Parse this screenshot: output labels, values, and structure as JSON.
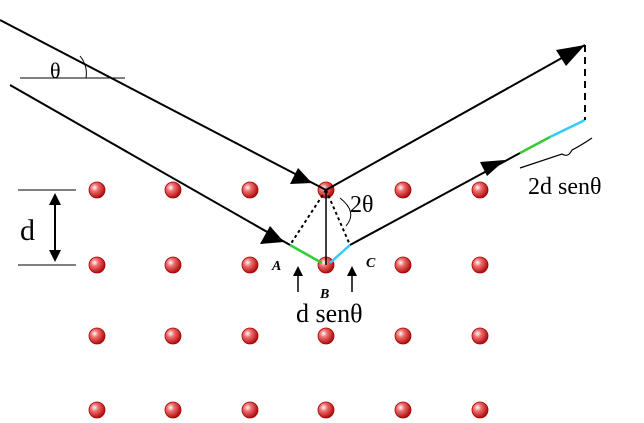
{
  "labels": {
    "theta": "θ",
    "two_theta": "2θ",
    "d": "d",
    "a": "A",
    "b": "B",
    "c": "C",
    "path_diff": "d senθ",
    "total_diff": "2d senθ"
  }
}
